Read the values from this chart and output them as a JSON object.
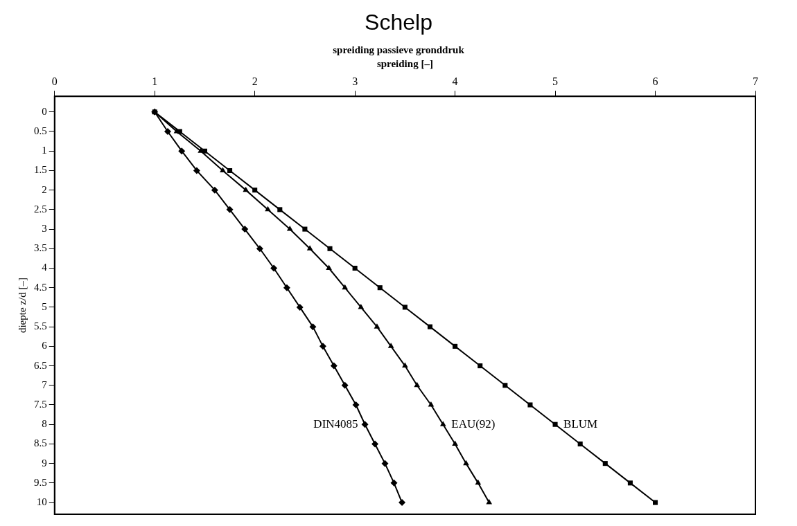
{
  "chart_data": {
    "type": "line",
    "title": "Schelp",
    "subtitle": "spreiding passieve gronddruk",
    "xlabel": "spreiding [–]",
    "ylabel": "diepte z/d [–]",
    "xlim": [
      0,
      7
    ],
    "xticks": [
      0,
      1,
      2,
      3,
      4,
      5,
      6,
      7
    ],
    "ylim": [
      10.3,
      -0.4
    ],
    "yticks": [
      0,
      0.5,
      1,
      1.5,
      2,
      2.5,
      3,
      3.5,
      4,
      4.5,
      5,
      5.5,
      6,
      6.5,
      7,
      7.5,
      8,
      8.5,
      9,
      9.5,
      10
    ],
    "grid": false,
    "legend": false,
    "line_style": "solid",
    "series": [
      {
        "name": "DIN4085",
        "color": "#000000",
        "marker": "diamond",
        "x": [
          1,
          1.13,
          1.27,
          1.42,
          1.6,
          1.75,
          1.9,
          2.05,
          2.19,
          2.32,
          2.45,
          2.58,
          2.68,
          2.79,
          2.9,
          3.01,
          3.1,
          3.2,
          3.3,
          3.39,
          3.47
        ],
        "values": [
          0,
          0.5,
          1,
          1.5,
          2,
          2.5,
          3,
          3.5,
          4,
          4.5,
          5,
          5.5,
          6,
          6.5,
          7,
          7.5,
          8,
          8.5,
          9,
          9.5,
          10
        ]
      },
      {
        "name": "EAU(92)",
        "color": "#000000",
        "marker": "triangle",
        "x": [
          1,
          1.22,
          1.46,
          1.68,
          1.91,
          2.13,
          2.35,
          2.55,
          2.74,
          2.9,
          3.06,
          3.22,
          3.36,
          3.5,
          3.62,
          3.76,
          3.88,
          4.0,
          4.11,
          4.23,
          4.34
        ],
        "values": [
          0,
          0.5,
          1,
          1.5,
          2,
          2.5,
          3,
          3.5,
          4,
          4.5,
          5,
          5.5,
          6,
          6.5,
          7,
          7.5,
          8,
          8.5,
          9,
          9.5,
          10
        ]
      },
      {
        "name": "BLUM",
        "color": "#000000",
        "marker": "square",
        "x": [
          1,
          1.25,
          1.5,
          1.75,
          2,
          2.25,
          2.5,
          2.75,
          3,
          3.25,
          3.5,
          3.75,
          4,
          4.25,
          4.5,
          4.75,
          5,
          5.25,
          5.5,
          5.75,
          6
        ],
        "values": [
          0,
          0.5,
          1,
          1.5,
          2,
          2.5,
          3,
          3.5,
          4,
          4.5,
          5,
          5.5,
          6,
          6.5,
          7,
          7.5,
          8,
          8.5,
          9,
          9.5,
          10
        ]
      }
    ]
  }
}
